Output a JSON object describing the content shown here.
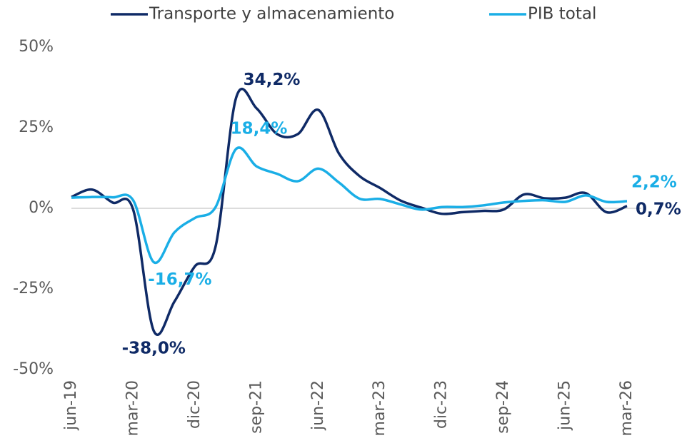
{
  "chart_data": {
    "type": "line",
    "categories": [
      "jun-19",
      null,
      null,
      "mar-20",
      null,
      null,
      "dic-20",
      null,
      null,
      "sep-21",
      null,
      null,
      "jun-22",
      null,
      null,
      "mar-23",
      null,
      null,
      "dic-23",
      null,
      null,
      "sep-24",
      null,
      null,
      "jun-25",
      null,
      null,
      "mar-26"
    ],
    "series": [
      {
        "name": "Transporte y almacenamiento",
        "color": "#0f2a66",
        "values": [
          3.5,
          5.8,
          1.8,
          -0.4,
          -38.0,
          -29,
          -18,
          -12,
          34.2,
          31,
          23,
          23,
          30.5,
          17,
          10,
          6.3,
          2.4,
          0.2,
          -1.7,
          -1.2,
          -0.8,
          -0.4,
          4.3,
          3.1,
          3.3,
          4.7,
          -1.2,
          0.7
        ],
        "value_labels": [
          null,
          null,
          null,
          null,
          "-38,0%",
          null,
          null,
          null,
          "34,2%",
          null,
          null,
          null,
          null,
          null,
          null,
          null,
          null,
          null,
          null,
          null,
          null,
          null,
          null,
          null,
          null,
          null,
          null,
          "0,7%"
        ]
      },
      {
        "name": "PIB total",
        "color": "#1aaee6",
        "values": [
          3.3,
          3.5,
          3.4,
          2.5,
          -16.7,
          -7.5,
          -3,
          0.3,
          18.4,
          13,
          10.7,
          8.4,
          12.3,
          8,
          3,
          2.9,
          1.2,
          -0.4,
          0.4,
          0.4,
          0.9,
          1.8,
          2.3,
          2.5,
          2,
          4,
          2,
          2.2
        ],
        "value_labels": [
          null,
          null,
          null,
          null,
          "-16,7%",
          null,
          null,
          null,
          "18,4%",
          null,
          null,
          null,
          null,
          null,
          null,
          null,
          null,
          null,
          null,
          null,
          null,
          null,
          null,
          null,
          null,
          null,
          null,
          "2,2%"
        ]
      }
    ],
    "ylim": [
      -50,
      50
    ],
    "yticks": [
      {
        "value": -50,
        "label": "-50%"
      },
      {
        "value": -25,
        "label": "-25%"
      },
      {
        "value": 0,
        "label": "0%"
      },
      {
        "value": 25,
        "label": "25%"
      },
      {
        "value": 50,
        "label": "50%"
      }
    ]
  }
}
